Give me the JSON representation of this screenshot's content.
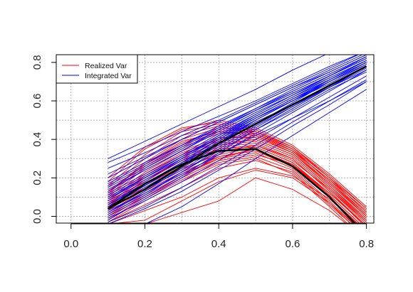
{
  "chart_data": {
    "type": "line",
    "title": "",
    "xlabel": "",
    "ylabel": "",
    "xlim": [
      -0.04,
      0.82
    ],
    "ylim": [
      -0.035,
      0.84
    ],
    "xticks": [
      0.0,
      0.2,
      0.4,
      0.6,
      0.8
    ],
    "xtick_labels": [
      "0.0",
      "0.2",
      "0.4",
      "0.6",
      "0.8"
    ],
    "yticks": [
      0.0,
      0.2,
      0.4,
      0.6,
      0.8
    ],
    "ytick_labels": [
      "0.0",
      "0.2",
      "0.4",
      "0.6",
      "0.8"
    ],
    "grid": true,
    "legend": {
      "placement": "top-left",
      "entries": [
        {
          "label": "Realized Var",
          "color": "#ff0000"
        },
        {
          "label": "Integrated Var",
          "color": "#0000ff"
        }
      ]
    },
    "colors": {
      "realized": "#ff0000",
      "integrated": "#0000ff",
      "mean": "#000000",
      "grid": "#b0b0b0"
    },
    "x": [
      0.1,
      0.2,
      0.3,
      0.4,
      0.5,
      0.6,
      0.7,
      0.8
    ],
    "series": [
      {
        "group": "realized-mean",
        "values": [
          0.04,
          0.17,
          0.27,
          0.34,
          0.35,
          0.26,
          0.1,
          -0.1
        ]
      },
      {
        "group": "integrated-mean",
        "values": [
          0.04,
          0.14,
          0.26,
          0.38,
          0.48,
          0.58,
          0.68,
          0.78
        ]
      },
      {
        "group": "realized",
        "values": [
          0.05,
          0.18,
          0.29,
          0.36,
          0.38,
          0.3,
          0.13,
          -0.05
        ]
      },
      {
        "group": "realized",
        "values": [
          0.0,
          0.12,
          0.22,
          0.3,
          0.33,
          0.25,
          0.08,
          -0.1
        ]
      },
      {
        "group": "realized",
        "values": [
          0.1,
          0.25,
          0.36,
          0.43,
          0.44,
          0.35,
          0.18,
          0.0
        ]
      },
      {
        "group": "realized",
        "values": [
          -0.03,
          0.08,
          0.18,
          0.27,
          0.3,
          0.22,
          0.05,
          -0.13
        ]
      },
      {
        "group": "realized",
        "values": [
          0.07,
          0.2,
          0.31,
          0.38,
          0.4,
          0.32,
          0.15,
          -0.02
        ]
      },
      {
        "group": "realized",
        "values": [
          0.12,
          0.28,
          0.4,
          0.46,
          0.45,
          0.36,
          0.2,
          0.02
        ]
      },
      {
        "group": "realized",
        "values": [
          0.03,
          0.15,
          0.25,
          0.32,
          0.36,
          0.28,
          0.11,
          -0.07
        ]
      },
      {
        "group": "realized",
        "values": [
          -0.02,
          0.1,
          0.2,
          0.29,
          0.32,
          0.27,
          0.12,
          -0.05
        ]
      },
      {
        "group": "realized",
        "values": [
          0.08,
          0.22,
          0.33,
          0.4,
          0.42,
          0.33,
          0.16,
          -0.01
        ]
      },
      {
        "group": "realized",
        "values": [
          0.15,
          0.3,
          0.42,
          0.47,
          0.43,
          0.34,
          0.19,
          0.03
        ]
      },
      {
        "group": "realized",
        "values": [
          -0.04,
          0.03,
          0.1,
          0.2,
          0.25,
          0.21,
          0.09,
          -0.08
        ]
      },
      {
        "group": "realized",
        "values": [
          -0.04,
          -0.02,
          0.08,
          0.18,
          0.24,
          0.2,
          0.07,
          -0.1
        ]
      },
      {
        "group": "realized",
        "values": [
          -0.04,
          -0.04,
          0.02,
          0.08,
          0.2,
          0.14,
          0.03,
          -0.12
        ]
      },
      {
        "group": "realized",
        "values": [
          0.18,
          0.35,
          0.45,
          0.5,
          0.46,
          0.37,
          0.22,
          0.05
        ]
      },
      {
        "group": "realized",
        "values": [
          0.02,
          0.14,
          0.24,
          0.33,
          0.37,
          0.29,
          0.14,
          -0.03
        ]
      },
      {
        "group": "realized",
        "values": [
          0.06,
          0.19,
          0.3,
          0.37,
          0.39,
          0.31,
          0.14,
          -0.04
        ]
      },
      {
        "group": "realized",
        "values": [
          -0.01,
          0.11,
          0.21,
          0.31,
          0.34,
          0.26,
          0.1,
          -0.09
        ]
      },
      {
        "group": "realized",
        "values": [
          0.09,
          0.23,
          0.34,
          0.41,
          0.41,
          0.33,
          0.17,
          0.0
        ]
      },
      {
        "group": "realized",
        "values": [
          0.04,
          0.16,
          0.26,
          0.35,
          0.37,
          0.3,
          0.13,
          -0.06
        ]
      },
      {
        "group": "realized",
        "values": [
          0.11,
          0.26,
          0.37,
          0.44,
          0.43,
          0.35,
          0.18,
          0.01
        ]
      },
      {
        "group": "realized",
        "values": [
          -0.03,
          0.06,
          0.15,
          0.25,
          0.29,
          0.23,
          0.06,
          -0.11
        ]
      },
      {
        "group": "realized",
        "values": [
          0.13,
          0.27,
          0.38,
          0.45,
          0.44,
          0.36,
          0.2,
          0.02
        ]
      },
      {
        "group": "realized",
        "values": [
          0.01,
          0.13,
          0.23,
          0.31,
          0.35,
          0.27,
          0.11,
          -0.07
        ]
      },
      {
        "group": "realized",
        "values": [
          0.06,
          0.21,
          0.32,
          0.39,
          0.41,
          0.33,
          0.16,
          -0.02
        ]
      },
      {
        "group": "realized",
        "values": [
          0.16,
          0.32,
          0.44,
          0.48,
          0.44,
          0.35,
          0.2,
          0.04
        ]
      },
      {
        "group": "realized",
        "values": [
          -0.02,
          0.09,
          0.19,
          0.28,
          0.31,
          0.24,
          0.07,
          -0.12
        ]
      },
      {
        "group": "realized",
        "values": [
          0.03,
          0.17,
          0.28,
          0.35,
          0.36,
          0.28,
          0.12,
          -0.05
        ]
      },
      {
        "group": "realized",
        "values": [
          0.08,
          0.21,
          0.32,
          0.4,
          0.43,
          0.34,
          0.17,
          0.0
        ]
      },
      {
        "group": "realized",
        "values": [
          0.2,
          0.36,
          0.46,
          0.49,
          0.45,
          0.36,
          0.21,
          0.04
        ]
      },
      {
        "group": "realized",
        "values": [
          0.0,
          0.1,
          0.21,
          0.3,
          0.35,
          0.27,
          0.1,
          -0.08
        ]
      },
      {
        "group": "realized",
        "values": [
          0.05,
          0.19,
          0.29,
          0.37,
          0.4,
          0.32,
          0.15,
          -0.03
        ]
      },
      {
        "group": "realized",
        "values": [
          0.12,
          0.27,
          0.39,
          0.44,
          0.42,
          0.34,
          0.19,
          0.01
        ]
      },
      {
        "group": "integrated",
        "values": [
          0.02,
          0.13,
          0.25,
          0.37,
          0.48,
          0.59,
          0.7,
          0.8
        ]
      },
      {
        "group": "integrated",
        "values": [
          0.06,
          0.16,
          0.27,
          0.39,
          0.49,
          0.58,
          0.68,
          0.78
        ]
      },
      {
        "group": "integrated",
        "values": [
          0.1,
          0.2,
          0.31,
          0.41,
          0.51,
          0.61,
          0.7,
          0.8
        ]
      },
      {
        "group": "integrated",
        "values": [
          -0.02,
          0.09,
          0.2,
          0.32,
          0.43,
          0.54,
          0.65,
          0.76
        ]
      },
      {
        "group": "integrated",
        "values": [
          0.15,
          0.25,
          0.35,
          0.45,
          0.55,
          0.64,
          0.73,
          0.82
        ]
      },
      {
        "group": "integrated",
        "values": [
          0.2,
          0.3,
          0.4,
          0.49,
          0.58,
          0.67,
          0.76,
          0.85
        ]
      },
      {
        "group": "integrated",
        "values": [
          0.25,
          0.33,
          0.42,
          0.5,
          0.59,
          0.68,
          0.77,
          0.86
        ]
      },
      {
        "group": "integrated",
        "values": [
          0.28,
          0.36,
          0.44,
          0.52,
          0.6,
          0.69,
          0.78,
          0.86
        ]
      },
      {
        "group": "integrated",
        "values": [
          0.3,
          0.39,
          0.48,
          0.57,
          0.66,
          0.76,
          0.85,
          0.94
        ]
      },
      {
        "group": "integrated",
        "values": [
          0.03,
          0.12,
          0.22,
          0.32,
          0.42,
          0.51,
          0.6,
          0.7
        ]
      },
      {
        "group": "integrated",
        "values": [
          -0.03,
          0.05,
          0.15,
          0.26,
          0.37,
          0.49,
          0.6,
          0.71
        ]
      },
      {
        "group": "integrated",
        "values": [
          0.08,
          0.18,
          0.3,
          0.41,
          0.52,
          0.62,
          0.72,
          0.81
        ]
      },
      {
        "group": "integrated",
        "values": [
          0.0,
          0.1,
          0.21,
          0.33,
          0.45,
          0.56,
          0.67,
          0.78
        ]
      },
      {
        "group": "integrated",
        "values": [
          0.12,
          0.22,
          0.32,
          0.43,
          0.53,
          0.63,
          0.72,
          0.81
        ]
      },
      {
        "group": "integrated",
        "values": [
          0.05,
          0.15,
          0.26,
          0.38,
          0.5,
          0.6,
          0.7,
          0.8
        ]
      },
      {
        "group": "integrated",
        "values": [
          0.18,
          0.28,
          0.37,
          0.47,
          0.56,
          0.65,
          0.74,
          0.83
        ]
      },
      {
        "group": "integrated",
        "values": [
          -0.01,
          0.08,
          0.18,
          0.29,
          0.4,
          0.51,
          0.62,
          0.73
        ]
      },
      {
        "group": "integrated",
        "values": [
          0.09,
          0.19,
          0.29,
          0.4,
          0.5,
          0.6,
          0.69,
          0.79
        ]
      },
      {
        "group": "integrated",
        "values": [
          0.04,
          0.14,
          0.24,
          0.36,
          0.47,
          0.57,
          0.67,
          0.77
        ]
      },
      {
        "group": "integrated",
        "values": [
          0.13,
          0.24,
          0.34,
          0.44,
          0.54,
          0.63,
          0.73,
          0.82
        ]
      },
      {
        "group": "integrated",
        "values": [
          0.07,
          0.17,
          0.28,
          0.4,
          0.51,
          0.61,
          0.71,
          0.81
        ]
      },
      {
        "group": "integrated",
        "values": [
          0.01,
          0.11,
          0.23,
          0.34,
          0.45,
          0.55,
          0.66,
          0.75
        ]
      },
      {
        "group": "integrated",
        "values": [
          0.22,
          0.31,
          0.4,
          0.49,
          0.58,
          0.67,
          0.75,
          0.84
        ]
      },
      {
        "group": "integrated",
        "values": [
          0.11,
          0.21,
          0.31,
          0.42,
          0.52,
          0.62,
          0.71,
          0.8
        ]
      },
      {
        "group": "integrated",
        "values": [
          0.05,
          0.16,
          0.27,
          0.39,
          0.5,
          0.6,
          0.71,
          0.81
        ]
      },
      {
        "group": "integrated",
        "values": [
          0.14,
          0.24,
          0.34,
          0.45,
          0.55,
          0.65,
          0.74,
          0.83
        ]
      },
      {
        "group": "integrated",
        "values": [
          -0.04,
          0.04,
          0.13,
          0.24,
          0.35,
          0.47,
          0.58,
          0.7
        ]
      },
      {
        "group": "integrated",
        "values": [
          -0.04,
          -0.04,
          0.05,
          0.17,
          0.3,
          0.42,
          0.54,
          0.66
        ]
      },
      {
        "group": "integrated",
        "values": [
          0.09,
          0.2,
          0.3,
          0.41,
          0.51,
          0.6,
          0.7,
          0.79
        ]
      },
      {
        "group": "integrated",
        "values": [
          0.16,
          0.26,
          0.36,
          0.46,
          0.56,
          0.66,
          0.75,
          0.84
        ]
      },
      {
        "group": "integrated",
        "values": [
          0.02,
          0.12,
          0.23,
          0.35,
          0.46,
          0.57,
          0.68,
          0.78
        ]
      },
      {
        "group": "integrated",
        "values": [
          0.1,
          0.2,
          0.31,
          0.42,
          0.53,
          0.63,
          0.73,
          0.83
        ]
      },
      {
        "group": "integrated",
        "values": [
          0.06,
          0.17,
          0.28,
          0.38,
          0.48,
          0.58,
          0.67,
          0.76
        ]
      },
      {
        "group": "integrated",
        "values": [
          0.17,
          0.27,
          0.37,
          0.46,
          0.55,
          0.64,
          0.73,
          0.82
        ]
      }
    ]
  }
}
